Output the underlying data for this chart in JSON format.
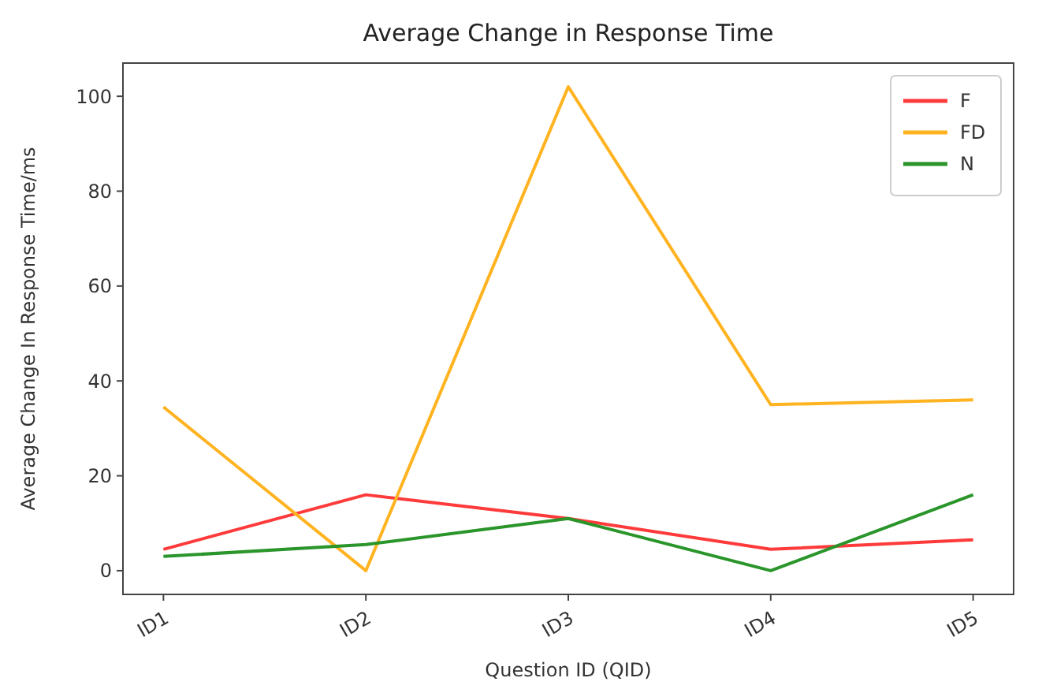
{
  "chart_data": {
    "type": "line",
    "title": "Average Change in Response Time",
    "xlabel": "Question ID (QID)",
    "ylabel": "Average Change In Response Time/ms",
    "categories": [
      "ID1",
      "ID2",
      "ID3",
      "ID4",
      "ID5"
    ],
    "series": [
      {
        "name": "F",
        "color": "#ff3a3a",
        "values": [
          4.5,
          16,
          11,
          4.5,
          6.5
        ]
      },
      {
        "name": "FD",
        "color": "#ffb320",
        "values": [
          34.5,
          0,
          102,
          35,
          36
        ]
      },
      {
        "name": "N",
        "color": "#2a952a",
        "values": [
          3,
          5.5,
          11,
          0,
          16
        ]
      }
    ],
    "ylim": [
      -5,
      107
    ],
    "yticks": [
      0,
      20,
      40,
      60,
      80,
      100
    ],
    "legend": "top right",
    "grid": false
  }
}
